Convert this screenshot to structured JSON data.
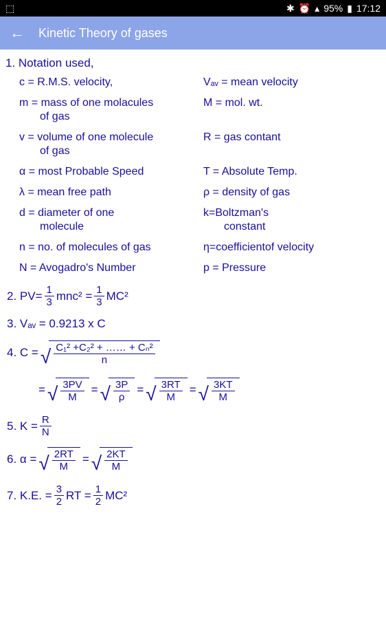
{
  "status_bar": {
    "pip_icon": "⬚",
    "bluetooth": "✱",
    "alarm": "⏰",
    "signal": "▴",
    "battery_pct": "95%",
    "battery_icon": "▮",
    "time": "17:12"
  },
  "app_bar": {
    "back_arrow": "←",
    "title": "Kinetic Theory of gases"
  },
  "section1": {
    "heading": "1. Notation used,",
    "items": [
      {
        "left": "c = R.M.S. velocity,",
        "right": "Vₐᵥ = mean velocity"
      },
      {
        "left": "m = mass of one molacules",
        "left2": "of gas",
        "right": "M = mol. wt."
      },
      {
        "left": "v = volume of one molecule",
        "left2": "of gas",
        "right": "R = gas contant"
      },
      {
        "left": "α = most Probable Speed",
        "right": "T = Absolute Temp."
      },
      {
        "left": "λ = mean free path",
        "right": "ρ = density of gas"
      },
      {
        "left": "d = diameter of one",
        "left2": "molecule",
        "right": "k=Boltzman's",
        "right2": "constant"
      },
      {
        "left": "n = no. of molecules of gas",
        "right": "η=coefficientof velocity"
      },
      {
        "left": "N = Avogadro's Number",
        "right": "p = Pressure"
      }
    ]
  },
  "formulas": {
    "f2_prefix": "2. PV= ",
    "f2_frac1_num": "1",
    "f2_frac1_den": "3",
    "f2_mid1": " mnc² = ",
    "f2_frac2_num": "1",
    "f2_frac2_den": "3",
    "f2_suffix": " MC²",
    "f3": "3. Vₐᵥ = 0.9213 x  C",
    "f4_prefix": "4. C = ",
    "f4_line1_num": "C₁²  +C₂²  + …… + Cₙ²",
    "f4_line1_den": "n",
    "f4_eq": "= ",
    "f4_s1_num": "3PV",
    "f4_s1_den": "M",
    "f4_s2_num": "3P",
    "f4_s2_den": "ρ",
    "f4_s3_num": "3RT",
    "f4_s3_den": "M",
    "f4_s4_num": "3KT",
    "f4_s4_den": "M",
    "f5_prefix": "5. K = ",
    "f5_num": "R",
    "f5_den": "N",
    "f6_prefix": "6. α =  ",
    "f6_s1_num": "2RT",
    "f6_s1_den": "M",
    "f6_s2_num": "2KT",
    "f6_s2_den": "M",
    "f7_prefix": "7. K.E. = ",
    "f7_frac1_num": "3",
    "f7_frac1_den": "2",
    "f7_mid": " RT = ",
    "f7_frac2_num": "1",
    "f7_frac2_den": "2",
    "f7_suffix": "MC²"
  },
  "colors": {
    "status_bg": "#000000",
    "appbar_bg": "#8ca4e8",
    "text": "#190e9a"
  }
}
